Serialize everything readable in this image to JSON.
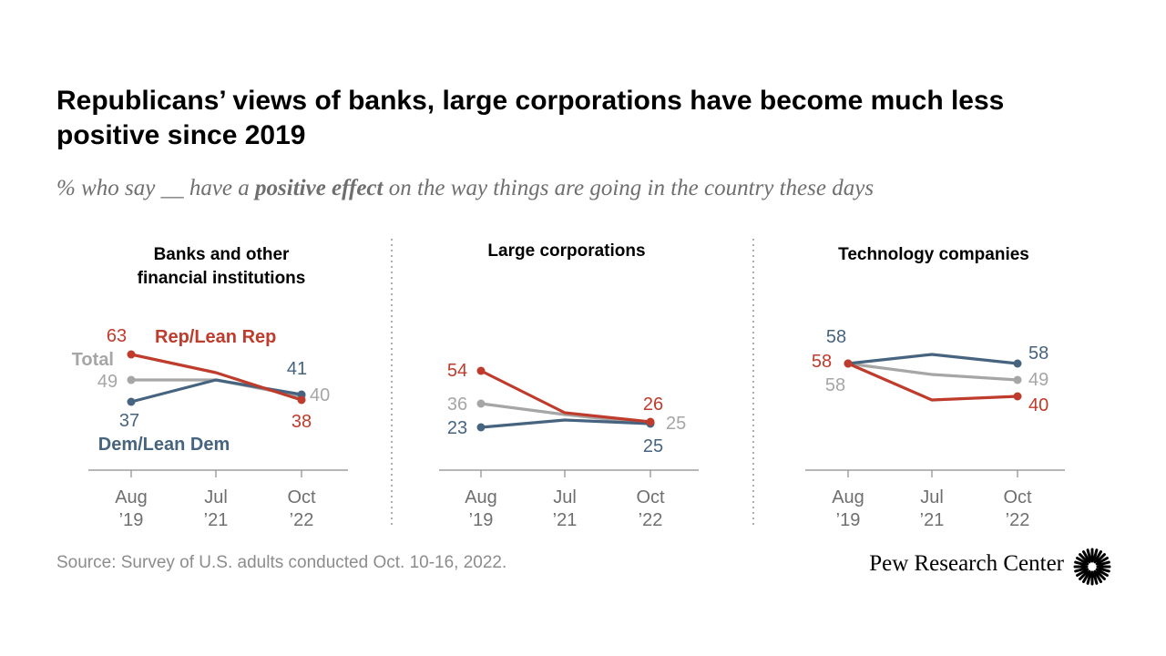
{
  "header": {
    "title": "Republicans’ views of banks, large corporations have become much less positive since 2019",
    "subtitle_pre": "% who say __ have a ",
    "subtitle_bold": "positive effect",
    "subtitle_post": " on the way things are going in the country these days"
  },
  "footer": {
    "source": "Source: Survey of U.S. adults conducted Oct. 10-16, 2022.",
    "brand": "Pew Research Center"
  },
  "colors": {
    "rep": "#bf3b2c",
    "dem": "#46647f",
    "total": "#a6a6a6",
    "axis": "#8c8c8c",
    "tick_text": "#6f6f6f"
  },
  "chart_data": [
    {
      "type": "line",
      "title": [
        "Banks and other",
        "financial institutions"
      ],
      "x": [
        [
          "Aug",
          "’19"
        ],
        [
          "Jul",
          "’21"
        ],
        [
          "Oct",
          "’22"
        ]
      ],
      "series": [
        {
          "name": "Rep/Lean Rep",
          "key": "rep",
          "values": [
            63,
            53,
            38
          ],
          "labels": [
            "63",
            "",
            "38"
          ]
        },
        {
          "name": "Total",
          "key": "total",
          "values": [
            49,
            49,
            40
          ],
          "labels": [
            "49",
            "",
            "40"
          ]
        },
        {
          "name": "Dem/Lean Dem",
          "key": "dem",
          "values": [
            37,
            49,
            41
          ],
          "labels": [
            "37",
            "",
            "41"
          ]
        }
      ],
      "legend": [
        "Rep/Lean Rep",
        "Total",
        "Dem/Lean Dem"
      ]
    },
    {
      "type": "line",
      "title": [
        "Large corporations"
      ],
      "x": [
        [
          "Aug",
          "’19"
        ],
        [
          "Jul",
          "’21"
        ],
        [
          "Oct",
          "’22"
        ]
      ],
      "series": [
        {
          "name": "Rep/Lean Rep",
          "key": "rep",
          "values": [
            54,
            31,
            26
          ],
          "labels": [
            "54",
            "",
            "26"
          ]
        },
        {
          "name": "Total",
          "key": "total",
          "values": [
            36,
            30,
            25
          ],
          "labels": [
            "36",
            "",
            "25"
          ]
        },
        {
          "name": "Dem/Lean Dem",
          "key": "dem",
          "values": [
            23,
            27,
            25
          ],
          "labels": [
            "23",
            "",
            "25"
          ]
        }
      ]
    },
    {
      "type": "line",
      "title": [
        "Technology companies"
      ],
      "x": [
        [
          "Aug",
          "’19"
        ],
        [
          "Jul",
          "’21"
        ],
        [
          "Oct",
          "’22"
        ]
      ],
      "series": [
        {
          "name": "Rep/Lean Rep",
          "key": "rep",
          "values": [
            58,
            38,
            40
          ],
          "labels": [
            "58",
            "",
            "40"
          ]
        },
        {
          "name": "Total",
          "key": "total",
          "values": [
            58,
            52,
            49
          ],
          "labels": [
            "58",
            "",
            "49"
          ]
        },
        {
          "name": "Dem/Lean Dem",
          "key": "dem",
          "values": [
            58,
            63,
            58
          ],
          "labels": [
            "58",
            "",
            "58"
          ]
        }
      ]
    }
  ]
}
